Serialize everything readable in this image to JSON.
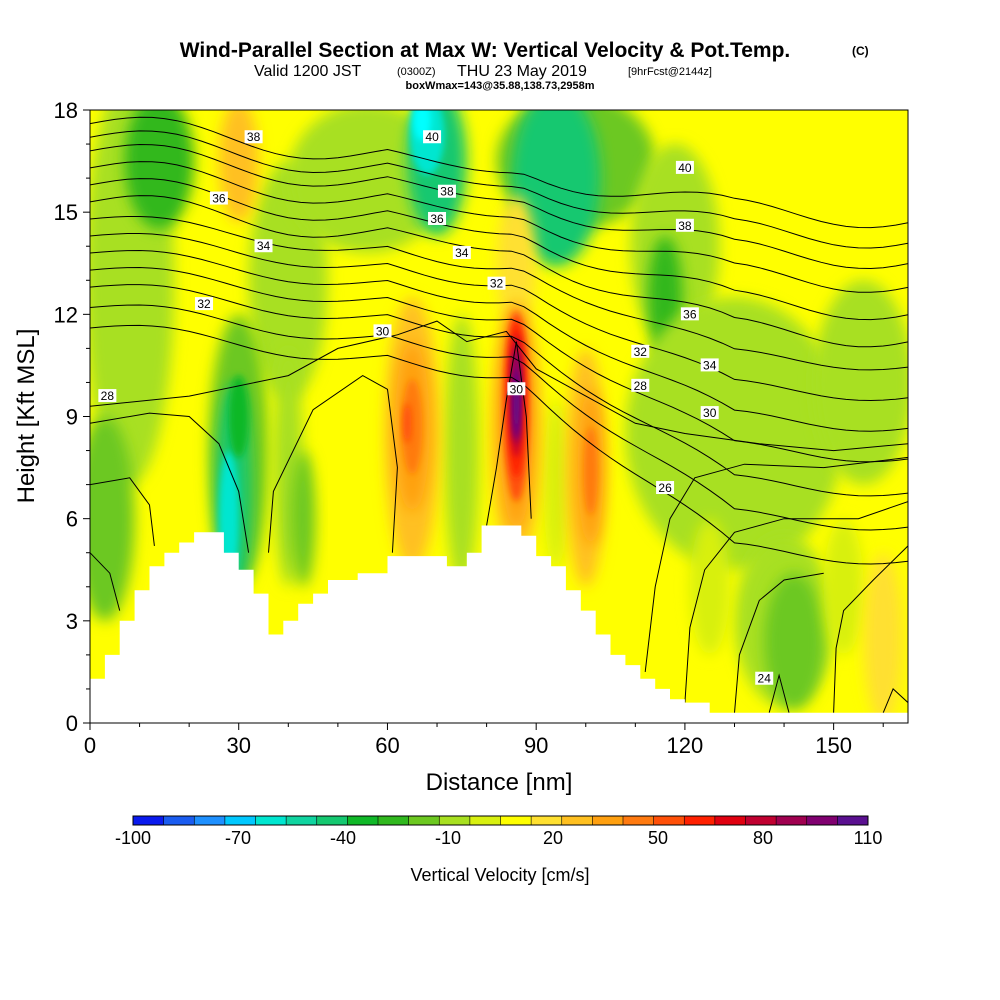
{
  "title": {
    "main": "Wind-Parallel Section at Max W: Vertical Velocity & Pot.Temp.",
    "copyright": "(C)",
    "valid_prefix": "Valid 1200 JST",
    "valid_z": "(0300Z)",
    "valid_date": "THU 23 May 2019",
    "forecast": "[9hrFcst@2144z]",
    "box": "boxWmax=143@35.88,138.73,2958m"
  },
  "colorbar": {
    "title": "Vertical Velocity [cm/s]",
    "tick_labels": [
      "-100",
      "-70",
      "-40",
      "-10",
      "20",
      "50",
      "80",
      "110"
    ],
    "colors": [
      "#0a1aee",
      "#1a5cf0",
      "#1e90ff",
      "#00c8ff",
      "#00e6d0",
      "#10d4a0",
      "#14c870",
      "#10b828",
      "#30b81e",
      "#6cc820",
      "#a8e020",
      "#d8f010",
      "#ffff00",
      "#ffe030",
      "#ffc020",
      "#ffa010",
      "#ff7a10",
      "#ff5008",
      "#ff2000",
      "#e00010",
      "#c00030",
      "#a00050",
      "#800070",
      "#5a1090"
    ]
  },
  "chart_data": {
    "type": "heatmap",
    "title": "Wind-Parallel Section at Max W: Vertical Velocity & Pot.Temp.",
    "xlabel": "Distance [nm]",
    "ylabel": "Height [Kft MSL]",
    "xlim": [
      0,
      165
    ],
    "ylim": [
      0,
      18
    ],
    "x_ticks": [
      "0",
      "30",
      "60",
      "90",
      "120",
      "150"
    ],
    "y_ticks": [
      "0",
      "3",
      "6",
      "9",
      "12",
      "15",
      "18"
    ],
    "variable": "Vertical Velocity [cm/s]",
    "value_range": [
      -100,
      110
    ],
    "contour_variable": "Pot.Temp.",
    "contour_labels": [
      {
        "text": "38",
        "x": 33,
        "y": 17.2
      },
      {
        "text": "36",
        "x": 26,
        "y": 15.4
      },
      {
        "text": "34",
        "x": 35,
        "y": 14.0
      },
      {
        "text": "32",
        "x": 23,
        "y": 12.3
      },
      {
        "text": "30",
        "x": 59,
        "y": 11.5
      },
      {
        "text": "28",
        "x": 3.5,
        "y": 9.6
      },
      {
        "text": "40",
        "x": 69,
        "y": 17.2
      },
      {
        "text": "38",
        "x": 72,
        "y": 15.6
      },
      {
        "text": "36",
        "x": 70,
        "y": 14.8
      },
      {
        "text": "34",
        "x": 75,
        "y": 13.8
      },
      {
        "text": "32",
        "x": 82,
        "y": 12.9
      },
      {
        "text": "30",
        "x": 86,
        "y": 9.8
      },
      {
        "text": "40",
        "x": 120,
        "y": 16.3
      },
      {
        "text": "38",
        "x": 120,
        "y": 14.6
      },
      {
        "text": "36",
        "x": 121,
        "y": 12.0
      },
      {
        "text": "34",
        "x": 125,
        "y": 10.5
      },
      {
        "text": "32",
        "x": 111,
        "y": 10.9
      },
      {
        "text": "28",
        "x": 111,
        "y": 9.9
      },
      {
        "text": "30",
        "x": 125,
        "y": 9.1
      },
      {
        "text": "26",
        "x": 116,
        "y": 6.9
      },
      {
        "text": "24",
        "x": 136,
        "y": 1.3
      }
    ],
    "terrain_profile": [
      {
        "x": 0,
        "y": 1.3
      },
      {
        "x": 3,
        "y": 2.0
      },
      {
        "x": 6,
        "y": 3.0
      },
      {
        "x": 9,
        "y": 3.9
      },
      {
        "x": 12,
        "y": 4.6
      },
      {
        "x": 15,
        "y": 5.0
      },
      {
        "x": 18,
        "y": 5.3
      },
      {
        "x": 21,
        "y": 5.6
      },
      {
        "x": 24,
        "y": 5.6
      },
      {
        "x": 27,
        "y": 5.0
      },
      {
        "x": 30,
        "y": 4.5
      },
      {
        "x": 33,
        "y": 3.8
      },
      {
        "x": 36,
        "y": 2.6
      },
      {
        "x": 39,
        "y": 3.0
      },
      {
        "x": 42,
        "y": 3.5
      },
      {
        "x": 45,
        "y": 3.8
      },
      {
        "x": 48,
        "y": 4.2
      },
      {
        "x": 54,
        "y": 4.4
      },
      {
        "x": 60,
        "y": 4.9
      },
      {
        "x": 66,
        "y": 4.9
      },
      {
        "x": 72,
        "y": 4.6
      },
      {
        "x": 76,
        "y": 5.0
      },
      {
        "x": 79,
        "y": 5.8
      },
      {
        "x": 84,
        "y": 5.8
      },
      {
        "x": 87,
        "y": 5.5
      },
      {
        "x": 90,
        "y": 4.9
      },
      {
        "x": 93,
        "y": 4.6
      },
      {
        "x": 96,
        "y": 3.9
      },
      {
        "x": 99,
        "y": 3.3
      },
      {
        "x": 102,
        "y": 2.6
      },
      {
        "x": 105,
        "y": 2.0
      },
      {
        "x": 108,
        "y": 1.7
      },
      {
        "x": 111,
        "y": 1.3
      },
      {
        "x": 114,
        "y": 1.0
      },
      {
        "x": 117,
        "y": 0.7
      },
      {
        "x": 120,
        "y": 0.6
      },
      {
        "x": 125,
        "y": 0.3
      },
      {
        "x": 165,
        "y": 0.3
      }
    ],
    "features": [
      {
        "kind": "updraft",
        "x": 86,
        "y": 9.5,
        "max_value": 110
      },
      {
        "kind": "updraft",
        "x": 65,
        "y": 8.8,
        "max_value": 70
      },
      {
        "kind": "updraft",
        "x": 102,
        "y": 7.5,
        "max_value": 60
      },
      {
        "kind": "downdraft",
        "x": 68,
        "y": 17.5,
        "min_value": -70
      },
      {
        "kind": "downdraft",
        "x": 30,
        "y": 7.0,
        "min_value": -50
      },
      {
        "kind": "downdraft",
        "x": 94,
        "y": 16.0,
        "min_value": -40
      }
    ]
  }
}
